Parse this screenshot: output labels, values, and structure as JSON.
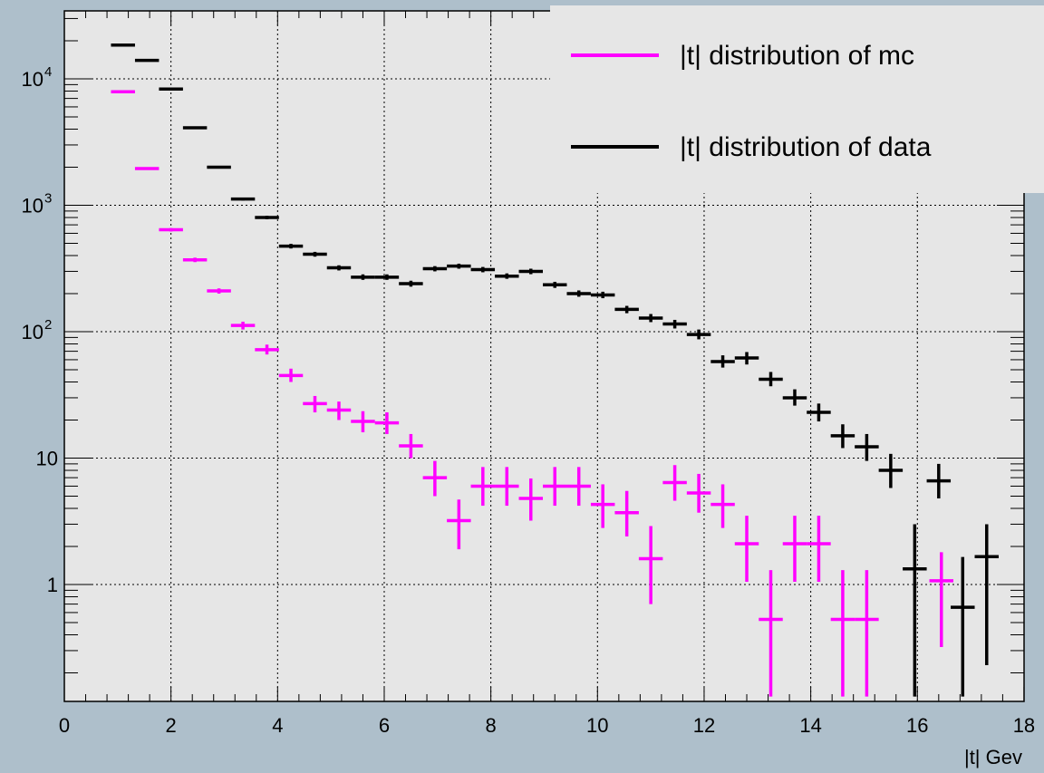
{
  "chart_data": {
    "type": "scatter",
    "title": "",
    "xlabel": "|t| Gev",
    "ylabel": "",
    "xlim": [
      0,
      18
    ],
    "ylim": [
      0.13,
      30000
    ],
    "log_y": true,
    "grid": true,
    "legend_position": "top-right",
    "x_ticks": [
      "0",
      "2",
      "4",
      "6",
      "8",
      "10",
      "12",
      "14",
      "16",
      "18"
    ],
    "y_ticks": [
      {
        "value": 1,
        "label": "1"
      },
      {
        "value": 10,
        "label": "10"
      },
      {
        "value": 100,
        "label": "10",
        "exp": "2"
      },
      {
        "value": 1000,
        "label": "10",
        "exp": "3"
      },
      {
        "value": 10000,
        "label": "10",
        "exp": "4"
      }
    ],
    "bin_halfwidth": 0.225,
    "series": [
      {
        "name": "|t| distribution of mc",
        "color": "#ff00ff",
        "points": [
          {
            "x": 1.1,
            "y": 7900,
            "lo": 7800,
            "hi": 8000
          },
          {
            "x": 1.55,
            "y": 1950,
            "lo": 1920,
            "hi": 1980
          },
          {
            "x": 2.0,
            "y": 640,
            "lo": 620,
            "hi": 660
          },
          {
            "x": 2.45,
            "y": 370,
            "lo": 355,
            "hi": 385
          },
          {
            "x": 2.9,
            "y": 210,
            "lo": 200,
            "hi": 220
          },
          {
            "x": 3.35,
            "y": 112,
            "lo": 104,
            "hi": 120
          },
          {
            "x": 3.8,
            "y": 72,
            "lo": 66,
            "hi": 79
          },
          {
            "x": 4.25,
            "y": 45,
            "lo": 40,
            "hi": 51
          },
          {
            "x": 4.7,
            "y": 27,
            "lo": 23,
            "hi": 31
          },
          {
            "x": 5.15,
            "y": 24,
            "lo": 20,
            "hi": 28
          },
          {
            "x": 5.6,
            "y": 19.5,
            "lo": 16,
            "hi": 23.5
          },
          {
            "x": 6.05,
            "y": 19,
            "lo": 15.5,
            "hi": 23
          },
          {
            "x": 6.5,
            "y": 12.5,
            "lo": 10,
            "hi": 15.5
          },
          {
            "x": 6.95,
            "y": 7,
            "lo": 5,
            "hi": 9.5
          },
          {
            "x": 7.4,
            "y": 3.2,
            "lo": 1.9,
            "hi": 4.7
          },
          {
            "x": 7.85,
            "y": 6,
            "lo": 4.2,
            "hi": 8.5
          },
          {
            "x": 8.3,
            "y": 6,
            "lo": 4.2,
            "hi": 8.5
          },
          {
            "x": 8.75,
            "y": 4.8,
            "lo": 3.2,
            "hi": 6.9
          },
          {
            "x": 9.2,
            "y": 6,
            "lo": 4.2,
            "hi": 8.5
          },
          {
            "x": 9.65,
            "y": 6,
            "lo": 4.2,
            "hi": 8.5
          },
          {
            "x": 10.1,
            "y": 4.3,
            "lo": 2.8,
            "hi": 6.2
          },
          {
            "x": 10.55,
            "y": 3.7,
            "lo": 2.4,
            "hi": 5.5
          },
          {
            "x": 11.0,
            "y": 1.6,
            "lo": 0.7,
            "hi": 2.9
          },
          {
            "x": 11.45,
            "y": 6.4,
            "lo": 4.6,
            "hi": 8.8
          },
          {
            "x": 11.9,
            "y": 5.3,
            "lo": 3.7,
            "hi": 7.5
          },
          {
            "x": 12.35,
            "y": 4.3,
            "lo": 2.8,
            "hi": 6.2
          },
          {
            "x": 12.8,
            "y": 2.1,
            "lo": 1.05,
            "hi": 3.5
          },
          {
            "x": 13.25,
            "y": 0.53,
            "lo": 0.13,
            "hi": 1.3
          },
          {
            "x": 13.7,
            "y": 2.1,
            "lo": 1.05,
            "hi": 3.5
          },
          {
            "x": 14.15,
            "y": 2.1,
            "lo": 1.05,
            "hi": 3.5
          },
          {
            "x": 14.6,
            "y": 0.53,
            "lo": 0.13,
            "hi": 1.3
          },
          {
            "x": 15.05,
            "y": 0.53,
            "lo": 0.13,
            "hi": 1.3
          },
          {
            "x": 16.45,
            "y": 1.07,
            "lo": 0.32,
            "hi": 1.8
          }
        ]
      },
      {
        "name": "|t| distribution of data",
        "color": "#000000",
        "points": [
          {
            "x": 1.1,
            "y": 18500,
            "lo": 18300,
            "hi": 18700
          },
          {
            "x": 1.55,
            "y": 14000,
            "lo": 13850,
            "hi": 14150
          },
          {
            "x": 2.0,
            "y": 8300,
            "lo": 8200,
            "hi": 8400
          },
          {
            "x": 2.45,
            "y": 4100,
            "lo": 4040,
            "hi": 4160
          },
          {
            "x": 2.9,
            "y": 2000,
            "lo": 1960,
            "hi": 2040
          },
          {
            "x": 3.35,
            "y": 1120,
            "lo": 1090,
            "hi": 1150
          },
          {
            "x": 3.8,
            "y": 800,
            "lo": 775,
            "hi": 825
          },
          {
            "x": 4.25,
            "y": 475,
            "lo": 455,
            "hi": 495
          },
          {
            "x": 4.7,
            "y": 410,
            "lo": 392,
            "hi": 428
          },
          {
            "x": 5.15,
            "y": 320,
            "lo": 305,
            "hi": 335
          },
          {
            "x": 5.6,
            "y": 270,
            "lo": 257,
            "hi": 284
          },
          {
            "x": 6.05,
            "y": 270,
            "lo": 257,
            "hi": 284
          },
          {
            "x": 6.5,
            "y": 240,
            "lo": 227,
            "hi": 253
          },
          {
            "x": 6.95,
            "y": 315,
            "lo": 300,
            "hi": 330
          },
          {
            "x": 7.4,
            "y": 330,
            "lo": 315,
            "hi": 345
          },
          {
            "x": 7.85,
            "y": 310,
            "lo": 295,
            "hi": 325
          },
          {
            "x": 8.3,
            "y": 275,
            "lo": 262,
            "hi": 289
          },
          {
            "x": 8.75,
            "y": 300,
            "lo": 285,
            "hi": 315
          },
          {
            "x": 9.2,
            "y": 235,
            "lo": 222,
            "hi": 248
          },
          {
            "x": 9.65,
            "y": 200,
            "lo": 189,
            "hi": 212
          },
          {
            "x": 10.1,
            "y": 195,
            "lo": 184,
            "hi": 207
          },
          {
            "x": 10.55,
            "y": 150,
            "lo": 140,
            "hi": 160
          },
          {
            "x": 11.0,
            "y": 128,
            "lo": 119,
            "hi": 138
          },
          {
            "x": 11.45,
            "y": 115,
            "lo": 106,
            "hi": 124
          },
          {
            "x": 11.9,
            "y": 95,
            "lo": 87,
            "hi": 104
          },
          {
            "x": 12.35,
            "y": 58,
            "lo": 52,
            "hi": 65
          },
          {
            "x": 12.8,
            "y": 62,
            "lo": 55,
            "hi": 69
          },
          {
            "x": 13.25,
            "y": 42,
            "lo": 37,
            "hi": 48
          },
          {
            "x": 13.7,
            "y": 30,
            "lo": 26,
            "hi": 35
          },
          {
            "x": 14.15,
            "y": 23,
            "lo": 19.5,
            "hi": 27
          },
          {
            "x": 14.6,
            "y": 15,
            "lo": 12,
            "hi": 18.5
          },
          {
            "x": 15.05,
            "y": 12.3,
            "lo": 9.5,
            "hi": 15.5
          },
          {
            "x": 15.5,
            "y": 8,
            "lo": 5.8,
            "hi": 10.8
          },
          {
            "x": 15.95,
            "y": 1.33,
            "lo": 0.13,
            "hi": 3.0
          },
          {
            "x": 16.4,
            "y": 6.6,
            "lo": 4.8,
            "hi": 9.0
          },
          {
            "x": 16.85,
            "y": 0.66,
            "lo": 0.13,
            "hi": 1.65
          },
          {
            "x": 17.3,
            "y": 1.66,
            "lo": 0.23,
            "hi": 3.0
          }
        ]
      }
    ]
  }
}
